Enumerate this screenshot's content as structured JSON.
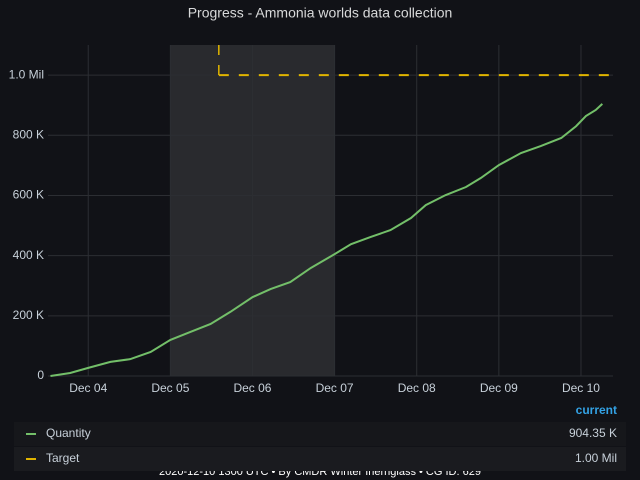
{
  "chart_data": {
    "type": "line",
    "title": "Progress - Ammonia worlds data collection",
    "xlim": [
      3.51,
      10.39
    ],
    "xticks": [
      {
        "value": 4,
        "label": "Dec 04"
      },
      {
        "value": 5,
        "label": "Dec 05"
      },
      {
        "value": 6,
        "label": "Dec 06"
      },
      {
        "value": 7,
        "label": "Dec 07"
      },
      {
        "value": 8,
        "label": "Dec 08"
      },
      {
        "value": 9,
        "label": "Dec 09"
      },
      {
        "value": 10,
        "label": "Dec 10"
      }
    ],
    "ylim": [
      0,
      1100000
    ],
    "yticks": [
      0,
      {
        "value": 200000,
        "label": "200 K"
      },
      {
        "value": 400000,
        "label": "400 K"
      },
      {
        "value": 600000,
        "label": "600 K"
      },
      {
        "value": 800000,
        "label": "800 K"
      },
      {
        "value": 1000000,
        "label": "1.0 Mil"
      }
    ],
    "grid": true,
    "region": [
      5,
      7
    ],
    "legend_column": "current",
    "series": [
      {
        "name": "Quantity",
        "color": "#73bf69",
        "x": [
          3.54,
          3.78,
          4.0,
          4.27,
          4.51,
          4.76,
          5.0,
          5.24,
          5.49,
          5.73,
          6.0,
          6.22,
          6.46,
          6.71,
          7.0,
          7.2,
          7.44,
          7.68,
          7.93,
          8.11,
          8.35,
          8.6,
          8.78,
          9.0,
          9.27,
          9.51,
          9.76,
          9.94,
          10.06,
          10.18,
          10.26
        ],
        "values": [
          0,
          10000,
          27000,
          47000,
          56000,
          80000,
          120000,
          146000,
          173000,
          213000,
          262000,
          289000,
          312000,
          359000,
          405000,
          438000,
          462000,
          485000,
          525000,
          568000,
          601000,
          628000,
          658000,
          701000,
          741000,
          764000,
          791000,
          830000,
          864000,
          884000,
          904350
        ],
        "current": {
          "value": 904350,
          "label": "904.35 K"
        }
      },
      {
        "name": "Target",
        "color": "#e0b400",
        "dashed": true,
        "x": [
          5.59,
          10.39
        ],
        "values": [
          1000000,
          1000000
        ],
        "current": {
          "value": 1000000,
          "label": "1.00 Mil"
        }
      }
    ],
    "footer": "2020-12-10 1300 UTC • By CMDR Winter Ihernglass • CG ID: 629"
  }
}
